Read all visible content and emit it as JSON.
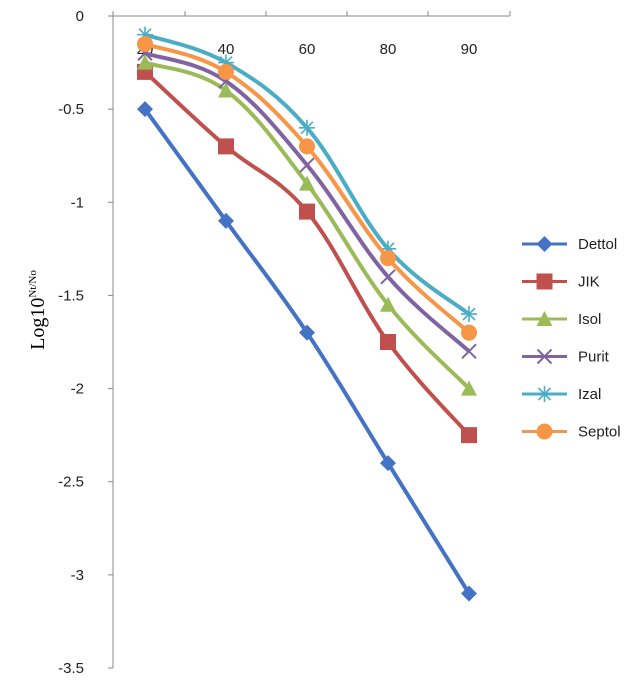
{
  "chart_data": {
    "type": "line",
    "x": [
      20,
      40,
      60,
      80,
      90
    ],
    "xticks": [
      "20",
      "40",
      "60",
      "80",
      "90"
    ],
    "ylim": [
      -3.5,
      0
    ],
    "yticks": [
      "0",
      "-0.5",
      "-1",
      "-1.5",
      "-2",
      "-2.5",
      "-3",
      "-3.5"
    ],
    "ylabel": {
      "base": "Log10",
      "superscript": "Nt/No"
    },
    "xaxis_position": "top",
    "grid": false,
    "legend_position": "right",
    "series": [
      {
        "name": "Dettol",
        "values": [
          -0.5,
          -1.1,
          -1.7,
          -2.4,
          -3.1
        ],
        "color": "#4472C4",
        "marker": "diamond"
      },
      {
        "name": "JIK",
        "values": [
          -0.3,
          -0.7,
          -1.05,
          -1.75,
          -2.25
        ],
        "color": "#C0504D",
        "marker": "square"
      },
      {
        "name": "Isol",
        "values": [
          -0.25,
          -0.4,
          -0.9,
          -1.55,
          -2.0
        ],
        "color": "#9BBB59",
        "marker": "triangle"
      },
      {
        "name": "Purit",
        "values": [
          -0.2,
          -0.35,
          -0.8,
          -1.4,
          -1.8
        ],
        "color": "#8064A2",
        "marker": "x"
      },
      {
        "name": "Izal",
        "values": [
          -0.1,
          -0.25,
          -0.6,
          -1.25,
          -1.6
        ],
        "color": "#4BACC6",
        "marker": "star"
      },
      {
        "name": "Septol",
        "values": [
          -0.15,
          -0.3,
          -0.7,
          -1.3,
          -1.7
        ],
        "color": "#F79646",
        "marker": "circle"
      }
    ]
  }
}
